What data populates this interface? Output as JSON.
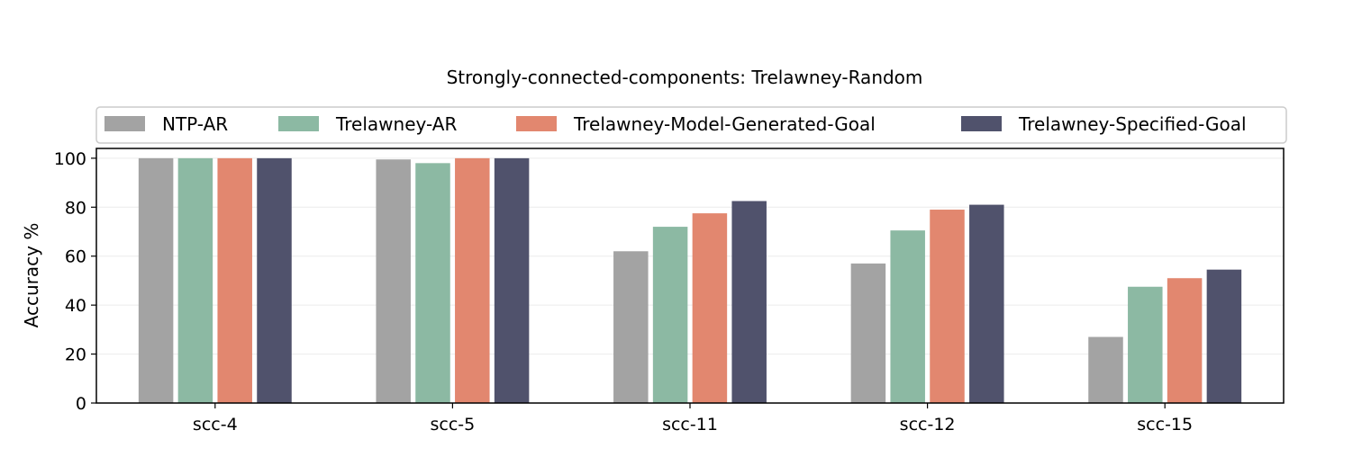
{
  "chart_data": {
    "type": "bar",
    "title": "Strongly-connected-components: Trelawney-Random",
    "xlabel": "",
    "ylabel": "Accuracy %",
    "ylim": [
      0,
      104
    ],
    "yticks": [
      0,
      20,
      40,
      60,
      80,
      100
    ],
    "grid": true,
    "legend_position": "top",
    "categories": [
      "scc-4",
      "scc-5",
      "scc-11",
      "scc-12",
      "scc-15"
    ],
    "series": [
      {
        "name": "NTP-AR",
        "color": "#a3a3a3",
        "values": [
          100,
          99.5,
          62,
          57,
          27
        ]
      },
      {
        "name": "Trelawney-AR",
        "color": "#8cb9a3",
        "values": [
          100,
          98,
          72,
          70.5,
          47.5
        ]
      },
      {
        "name": "Trelawney-Model-Generated-Goal",
        "color": "#e2876f",
        "values": [
          100,
          100,
          77.5,
          79,
          51
        ]
      },
      {
        "name": "Trelawney-Specified-Goal",
        "color": "#50526c",
        "values": [
          100,
          100,
          82.5,
          81,
          54.5
        ]
      }
    ]
  }
}
